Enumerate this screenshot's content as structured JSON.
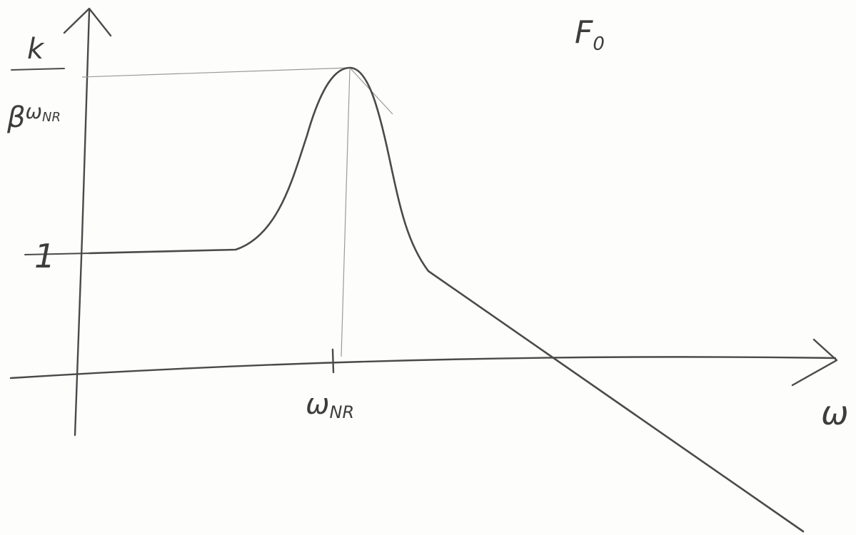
{
  "title": {
    "symbol": "F",
    "subscript": "0"
  },
  "y_axis": {
    "peak_label": {
      "numerator": "k",
      "denominator": "β",
      "denominator_symbol": "ω",
      "denominator_subscript": "NR"
    },
    "level_label": "1"
  },
  "x_axis": {
    "label": "ω",
    "tick_label": {
      "symbol": "ω",
      "subscript": "NR"
    }
  }
}
